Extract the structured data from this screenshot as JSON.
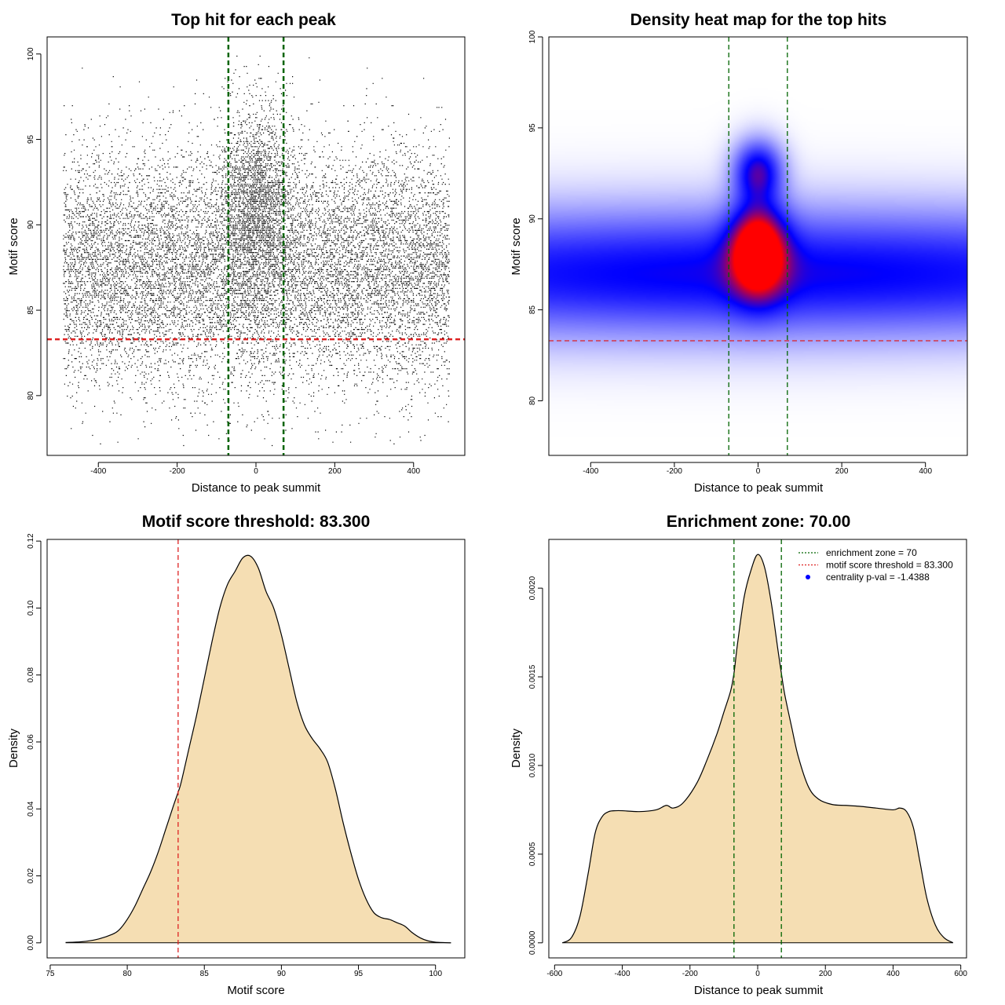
{
  "chart_data": [
    {
      "type": "scatter",
      "title": "Top hit for each peak",
      "xlabel": "Distance to peak summit",
      "ylabel": "Motif score",
      "xlim": [
        -530,
        530
      ],
      "ylim": [
        76.5,
        101
      ],
      "xticks": [
        -400,
        -200,
        0,
        200,
        400
      ],
      "yticks": [
        80,
        85,
        90,
        95,
        100
      ],
      "ytick_rotated": true,
      "point_count_approx": 15000,
      "point_distribution": {
        "background": {
          "x_range": [
            -490,
            490
          ],
          "y_center": 87.5,
          "y_sd": 3.4
        },
        "central_cluster": {
          "x_center": 0,
          "x_sd": 45,
          "y_center": 91.5,
          "y_sd": 2.8
        }
      },
      "point_color": "#000000",
      "vlines": [
        {
          "x": -70,
          "color": "#006400",
          "style": "dashed"
        },
        {
          "x": 70,
          "color": "#006400",
          "style": "dashed"
        }
      ],
      "hlines": [
        {
          "y": 83.3,
          "color": "#dd2222",
          "style": "dashed"
        }
      ]
    },
    {
      "type": "heatmap",
      "title": "Density heat map for the top hits",
      "xlabel": "Distance to peak summit",
      "ylabel": "Motif score",
      "xlim": [
        -500,
        500
      ],
      "ylim": [
        77,
        100
      ],
      "xticks": [
        -400,
        -200,
        0,
        200,
        400
      ],
      "yticks": [
        80,
        85,
        90,
        95,
        100
      ],
      "ytick_rotated": true,
      "color_scale": [
        "#ffffff",
        "#0000ff",
        "#ff0000"
      ],
      "density_components": [
        {
          "x_center": 0,
          "x_sd": 1000,
          "y_center": 87,
          "y_sd": 2.2,
          "weight": 0.55
        },
        {
          "x_center": 0,
          "x_sd": 45,
          "y_center": 88.3,
          "y_sd": 1.7,
          "weight": 1.0
        },
        {
          "x_center": 0,
          "x_sd": 38,
          "y_center": 92.6,
          "y_sd": 1.1,
          "weight": 0.6
        }
      ],
      "vlines": [
        {
          "x": -70,
          "color": "#006400",
          "style": "dashed"
        },
        {
          "x": 70,
          "color": "#006400",
          "style": "dashed"
        }
      ],
      "hlines": [
        {
          "y": 83.3,
          "color": "#dd2222",
          "style": "dashed"
        }
      ]
    },
    {
      "type": "area",
      "title": "Motif score threshold: 83.300",
      "xlabel": "Motif score",
      "ylabel": "Density",
      "xlim": [
        74.8,
        101.9
      ],
      "ylim": [
        -0.0045,
        0.1205
      ],
      "xticks": [
        75,
        80,
        85,
        90,
        95,
        100
      ],
      "yticks": [
        0.0,
        0.02,
        0.04,
        0.06,
        0.08,
        0.1,
        0.12
      ],
      "ytick_labels": [
        "0.00",
        "0.02",
        "0.04",
        "0.06",
        "0.08",
        "0.10",
        "0.12"
      ],
      "ytick_rotated": true,
      "fill_color": "#f5deb3",
      "line_color": "#000000",
      "x": [
        76,
        77,
        78,
        79,
        79.5,
        80,
        80.5,
        81,
        81.5,
        82,
        82.5,
        83,
        83.3,
        83.5,
        84,
        84.5,
        85,
        85.5,
        86,
        86.5,
        87,
        87.5,
        88,
        88.5,
        89,
        89.5,
        90,
        90.5,
        91,
        91.5,
        92,
        92.5,
        93,
        93.5,
        94,
        94.5,
        95,
        95.5,
        96,
        96.5,
        97,
        97.5,
        98,
        98.5,
        99,
        99.5,
        100,
        101
      ],
      "y": [
        0.0001,
        0.0003,
        0.001,
        0.0025,
        0.004,
        0.007,
        0.011,
        0.016,
        0.021,
        0.027,
        0.034,
        0.041,
        0.045,
        0.048,
        0.058,
        0.068,
        0.079,
        0.09,
        0.1,
        0.107,
        0.111,
        0.115,
        0.1155,
        0.112,
        0.105,
        0.1,
        0.092,
        0.082,
        0.072,
        0.065,
        0.061,
        0.058,
        0.054,
        0.046,
        0.036,
        0.027,
        0.019,
        0.013,
        0.009,
        0.0075,
        0.007,
        0.006,
        0.005,
        0.003,
        0.0015,
        0.0006,
        0.0002,
        0.0
      ]
    },
    {
      "type": "area",
      "title": "Enrichment zone: 70.00",
      "xlabel": "Distance to peak summit",
      "ylabel": "Density",
      "xlim": [
        -617,
        617
      ],
      "ylim": [
        -8.5e-05,
        0.002275
      ],
      "xticks": [
        -600,
        -400,
        -200,
        0,
        200,
        400,
        600
      ],
      "yticks": [
        0.0,
        0.0005,
        0.001,
        0.0015,
        0.002
      ],
      "ytick_labels": [
        "0.0000",
        "0.0005",
        "0.0010",
        "0.0015",
        "0.0020"
      ],
      "ytick_rotated": true,
      "fill_color": "#f5deb3",
      "line_color": "#000000",
      "x": [
        -577,
        -550,
        -525,
        -500,
        -480,
        -460,
        -440,
        -420,
        -400,
        -350,
        -300,
        -270,
        -250,
        -220,
        -180,
        -150,
        -120,
        -100,
        -80,
        -70,
        -60,
        -40,
        -20,
        0,
        20,
        40,
        60,
        70,
        80,
        100,
        120,
        150,
        180,
        220,
        260,
        300,
        350,
        400,
        420,
        440,
        460,
        480,
        500,
        525,
        550,
        577
      ],
      "y": [
        0.0,
        3e-05,
        0.00015,
        0.0004,
        0.00062,
        0.00071,
        0.00074,
        0.000745,
        0.000745,
        0.00074,
        0.00075,
        0.000775,
        0.00076,
        0.00079,
        0.0009,
        0.00103,
        0.00118,
        0.0013,
        0.00142,
        0.00152,
        0.00168,
        0.00195,
        0.0021,
        0.00219,
        0.00212,
        0.00192,
        0.00165,
        0.00152,
        0.0014,
        0.00122,
        0.00105,
        0.00088,
        0.00081,
        0.00078,
        0.000775,
        0.00077,
        0.00076,
        0.00075,
        0.00076,
        0.00074,
        0.00065,
        0.00045,
        0.00025,
        0.0001,
        3e-05,
        0.0
      ],
      "vlines": [
        {
          "x": -70,
          "color": "#006400",
          "style": "dashed"
        },
        {
          "x": 70,
          "color": "#006400",
          "style": "dashed"
        }
      ],
      "legend": {
        "position": "top-right",
        "entries": [
          {
            "label": "enrichment zone = 70",
            "color": "#006400",
            "symbol": "dotted-line"
          },
          {
            "label": "motif score threshold = 83.300",
            "color": "#dd2222",
            "symbol": "dotted-line"
          },
          {
            "label": "centrality p-val = -1.4388",
            "color": "#0000ff",
            "symbol": "dot"
          }
        ]
      }
    }
  ]
}
